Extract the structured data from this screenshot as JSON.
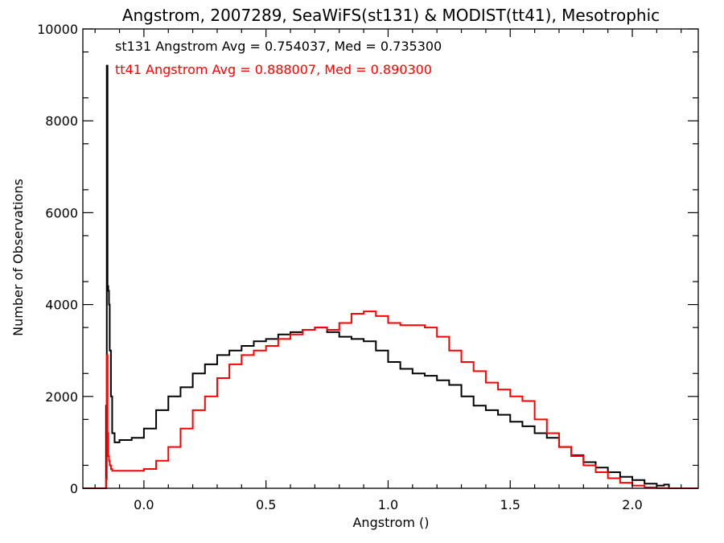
{
  "chart_data": {
    "type": "line",
    "step": true,
    "title": "Angstrom, 2007289, SeaWiFS(st131) & MODIST(tt41), Mesotrophic",
    "xlabel": "Angstrom ()",
    "ylabel": "Number of Observations",
    "xlim": [
      -0.25,
      2.27
    ],
    "ylim": [
      0,
      10000
    ],
    "xticks": [
      0.0,
      0.5,
      1.0,
      1.5,
      2.0
    ],
    "xtick_labels": [
      "0.0",
      "0.5",
      "1.0",
      "1.5",
      "2.0"
    ],
    "yticks": [
      0,
      2000,
      4000,
      6000,
      8000,
      10000
    ],
    "ytick_labels": [
      "0",
      "2000",
      "4000",
      "6000",
      "8000",
      "10000"
    ],
    "grid": false,
    "annotations": [
      {
        "text": "st131 Angstrom Avg = 0.754037, Med = 0.735300",
        "color": "#000000"
      },
      {
        "text": "tt41 Angstrom Avg = 0.888007, Med = 0.890300",
        "color": "#ff0000"
      }
    ],
    "series": [
      {
        "color": "#000000",
        "x": [
          -0.25,
          -0.155,
          -0.152,
          -0.149,
          -0.146,
          -0.143,
          -0.14,
          -0.135,
          -0.13,
          -0.12,
          -0.1,
          -0.05,
          0.0,
          0.05,
          0.1,
          0.15,
          0.2,
          0.25,
          0.3,
          0.35,
          0.4,
          0.45,
          0.5,
          0.55,
          0.6,
          0.65,
          0.7,
          0.75,
          0.8,
          0.85,
          0.9,
          0.95,
          1.0,
          1.05,
          1.1,
          1.15,
          1.2,
          1.25,
          1.3,
          1.35,
          1.4,
          1.45,
          1.5,
          1.55,
          1.6,
          1.65,
          1.7,
          1.75,
          1.8,
          1.85,
          1.9,
          1.95,
          2.0,
          2.05,
          2.1,
          2.13,
          2.15,
          2.27
        ],
        "y": [
          0,
          1800,
          9200,
          4400,
          4300,
          4000,
          3000,
          2000,
          1200,
          1000,
          1050,
          1100,
          1300,
          1700,
          2000,
          2200,
          2500,
          2700,
          2900,
          3000,
          3100,
          3200,
          3250,
          3350,
          3400,
          3450,
          3500,
          3400,
          3300,
          3250,
          3200,
          3000,
          2750,
          2600,
          2500,
          2450,
          2350,
          2250,
          2000,
          1800,
          1700,
          1600,
          1450,
          1350,
          1200,
          1100,
          900,
          720,
          570,
          450,
          350,
          250,
          180,
          100,
          60,
          80,
          0,
          0
        ]
      },
      {
        "color": "#ff0000",
        "x": [
          -0.25,
          -0.155,
          -0.152,
          -0.149,
          -0.146,
          -0.143,
          -0.14,
          -0.135,
          -0.13,
          -0.12,
          -0.1,
          -0.05,
          0.0,
          0.05,
          0.1,
          0.15,
          0.2,
          0.25,
          0.3,
          0.35,
          0.4,
          0.45,
          0.5,
          0.55,
          0.6,
          0.65,
          0.7,
          0.75,
          0.8,
          0.85,
          0.9,
          0.95,
          1.0,
          1.05,
          1.1,
          1.15,
          1.2,
          1.25,
          1.3,
          1.35,
          1.4,
          1.45,
          1.5,
          1.55,
          1.6,
          1.65,
          1.7,
          1.75,
          1.8,
          1.85,
          1.9,
          1.95,
          2.0,
          2.05,
          2.1,
          2.15,
          2.27
        ],
        "y": [
          0,
          200,
          2900,
          1200,
          700,
          600,
          500,
          420,
          380,
          380,
          380,
          380,
          420,
          600,
          900,
          1300,
          1700,
          2000,
          2400,
          2700,
          2900,
          3000,
          3100,
          3250,
          3350,
          3450,
          3500,
          3450,
          3600,
          3800,
          3850,
          3750,
          3600,
          3550,
          3550,
          3500,
          3300,
          3000,
          2750,
          2550,
          2300,
          2150,
          2000,
          1900,
          1500,
          1200,
          900,
          700,
          500,
          350,
          220,
          120,
          60,
          20,
          5,
          0,
          0
        ]
      }
    ]
  }
}
